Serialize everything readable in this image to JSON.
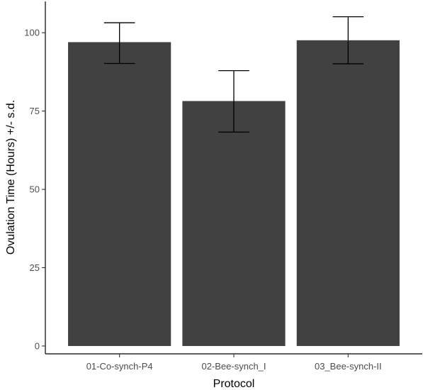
{
  "chart_data": {
    "type": "bar",
    "title": "",
    "xlabel": "Protocol",
    "ylabel": "Ovulation Time (Hours) +/- s.d.",
    "categories": [
      "01-Co-synch-P4",
      "02-Bee-synch_I",
      "03_Bee-synch-II"
    ],
    "values": [
      97.0,
      78.2,
      97.6
    ],
    "error_low": [
      90.2,
      68.3,
      90.1
    ],
    "error_high": [
      103.2,
      87.9,
      105.1
    ],
    "ylim": [
      -2.5,
      110
    ],
    "yticks": [
      0,
      25,
      50,
      75,
      100
    ],
    "ytick_labels": [
      "0",
      "25",
      "50",
      "75",
      "100"
    ],
    "bar_color": "#414141",
    "error_bar_color": "#000000",
    "background": "#ffffff",
    "grid": false,
    "legend": "none"
  }
}
